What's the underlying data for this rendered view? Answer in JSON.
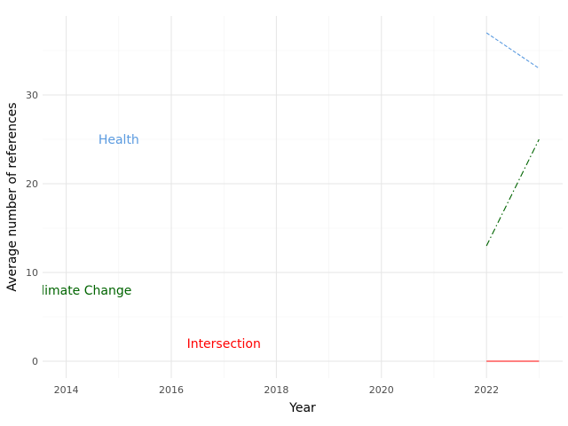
{
  "chart_data": {
    "type": "line",
    "title": "",
    "xlabel": "Year",
    "ylabel": "Average number of references",
    "xlim": [
      2013.55,
      2023.45
    ],
    "ylim": [
      -1.9,
      38.9
    ],
    "x_ticks": [
      2014,
      2016,
      2018,
      2020,
      2022
    ],
    "x_tick_labels": [
      "2014",
      "2016",
      "2018",
      "2020",
      "2022"
    ],
    "y_ticks": [
      0,
      10,
      20,
      30
    ],
    "y_tick_labels": [
      "0",
      "10",
      "20",
      "30"
    ],
    "grid": true,
    "legend": "none",
    "series": [
      {
        "name": "Health",
        "color": "#5b9be0",
        "dash": "dashed",
        "x": [
          2022,
          2023
        ],
        "values": [
          37,
          33
        ]
      },
      {
        "name": "Climate Change",
        "color": "#006400",
        "dash": "dashdot",
        "x": [
          2022,
          2023
        ],
        "values": [
          13,
          25
        ]
      },
      {
        "name": "Intersection",
        "color": "#ff0000",
        "dash": "solid",
        "x": [
          2022,
          2023
        ],
        "values": [
          0,
          0
        ]
      }
    ],
    "annotations": [
      {
        "series": 0,
        "x": 2015,
        "y": 25
      },
      {
        "series": 1,
        "x": 2014.3,
        "y": 8
      },
      {
        "series": 2,
        "x": 2017,
        "y": 2
      }
    ]
  }
}
